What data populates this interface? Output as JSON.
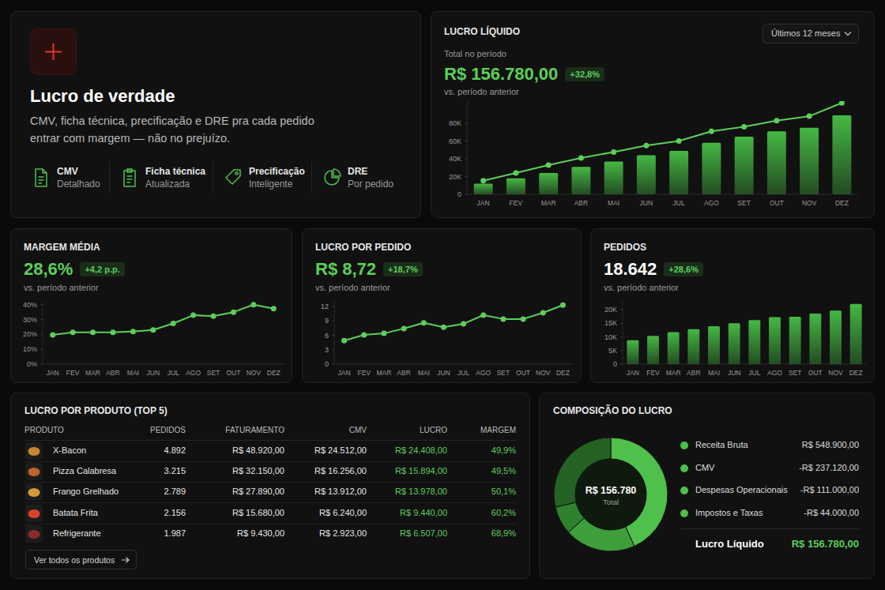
{
  "hero": {
    "title": "Lucro de verdade",
    "description": "CMV, ficha técnica, precificação e DRE pra cada pedido entrar com margem — não no prejuízo.",
    "features": [
      {
        "label": "CMV",
        "sublabel": "Detalhado"
      },
      {
        "label": "Ficha técnica",
        "sublabel": "Atualizada"
      },
      {
        "label": "Precificação",
        "sublabel": "Inteligente"
      },
      {
        "label": "DRE",
        "sublabel": "Por pedido"
      }
    ]
  },
  "kpis": [
    {
      "selector": "Últimos 12 meses",
      "caption": "Total no período",
      "value": "R$ 156.780,00",
      "change": "+32,8%",
      "comparison": "vs. período anterior"
    },
    {
      "value": "28,6%",
      "change": "+4,2 p.p.",
      "comparison": "vs. período anterior"
    },
    {
      "value": "R$ 8,72",
      "change": "+18,7%",
      "comparison": "vs. período anterior"
    },
    {
      "value": "18.642",
      "change": "+28,6%",
      "comparison": "vs. período anterior"
    }
  ],
  "chart_data": [
    {
      "type": "bar",
      "title": "LUCRO LÍQUIDO",
      "categories": [
        "JAN",
        "FEV",
        "MAR",
        "ABR",
        "MAI",
        "JUN",
        "JUL",
        "AGO",
        "SET",
        "OUT",
        "NOV",
        "DEZ"
      ],
      "series": [
        {
          "type": "bar",
          "color": "#45b843",
          "values": [
            12000,
            18000,
            24000,
            31000,
            37000,
            44000,
            49000,
            58000,
            65000,
            71000,
            75000,
            89000
          ]
        },
        {
          "type": "line",
          "color": "#5ccf5a",
          "marker": "circle",
          "values": [
            15300,
            24000,
            33000,
            41000,
            47600,
            55000,
            60000,
            71000,
            76000,
            83000,
            88000,
            103000
          ]
        }
      ],
      "ylim": [
        0,
        105000
      ],
      "yticks": [
        0,
        {
          "value": 20000,
          "label": "20K"
        },
        {
          "value": 40000,
          "label": "40K"
        },
        {
          "value": 60000,
          "label": "60K"
        },
        {
          "value": 80000,
          "label": "80K"
        }
      ],
      "grid": false
    },
    {
      "type": "line",
      "title": "MARGEM MÉDIA",
      "categories": [
        "JAN",
        "FEV",
        "MAR",
        "ABR",
        "MAI",
        "JUN",
        "JUL",
        "AGO",
        "SET",
        "OUT",
        "NOV",
        "DEZ"
      ],
      "values": [
        19.7,
        21.4,
        21.4,
        21.4,
        21.9,
        23,
        27.4,
        32.9,
        32.3,
        35,
        40,
        37.3
      ],
      "color": "#5ccf5a",
      "marker": "circle",
      "ylim": [
        0,
        42
      ],
      "yticks": [
        {
          "value": 0,
          "label": "0%"
        },
        {
          "value": 10,
          "label": "10%"
        },
        {
          "value": 20,
          "label": "20%"
        },
        {
          "value": 30,
          "label": "30%"
        },
        {
          "value": 40,
          "label": "40%"
        }
      ],
      "grid": false
    },
    {
      "type": "line",
      "title": "LUCRO POR PEDIDO",
      "categories": [
        "JAN",
        "FEV",
        "MAR",
        "ABR",
        "MAI",
        "JUN",
        "JUL",
        "AGO",
        "SET",
        "OUT",
        "NOV",
        "DEZ"
      ],
      "values": [
        4.9,
        6.1,
        6.4,
        7.4,
        8.6,
        7.7,
        8.4,
        10.2,
        9.4,
        9.4,
        10.7,
        12.3
      ],
      "color": "#5ccf5a",
      "marker": "circle",
      "ylim": [
        0,
        13
      ],
      "yticks": [
        0,
        3,
        6,
        9,
        12
      ],
      "grid": false
    },
    {
      "type": "bar",
      "title": "PEDIDOS",
      "categories": [
        "JAN",
        "FEV",
        "MAR",
        "ABR",
        "MAI",
        "JUN",
        "JUL",
        "AGO",
        "SET",
        "OUT",
        "NOV",
        "DEZ"
      ],
      "values": [
        8800,
        10400,
        11800,
        12900,
        14000,
        15100,
        16200,
        17300,
        17500,
        18600,
        19700,
        22200
      ],
      "color": "#45b843",
      "ylim": [
        0,
        23000
      ],
      "yticks": [
        0,
        {
          "value": 5000,
          "label": "5K"
        },
        {
          "value": 10000,
          "label": "10K"
        },
        {
          "value": 15000,
          "label": "15K"
        },
        {
          "value": 20000,
          "label": "20K"
        }
      ],
      "grid": false
    },
    {
      "type": "pie",
      "title": "COMPOSIÇÃO DO LUCRO",
      "center_label": "R$ 156.780",
      "center_sublabel": "Total",
      "values": [
        237120,
        111000,
        44000,
        156780
      ],
      "colors": [
        "#4fc04c",
        "#3d9e3b",
        "#2f812d",
        "#246323"
      ]
    }
  ],
  "table": {
    "title": "LUCRO POR PRODUTO (TOP 5)",
    "columns": [
      "PRODUTO",
      "PEDIDOS",
      "FATURAMENTO",
      "CMV",
      "LUCRO",
      "MARGEM"
    ],
    "rows": [
      [
        "X-Bacon",
        "4.892",
        "R$ 48.920,00",
        "R$ 24.512,00",
        "R$ 24.408,00",
        "49,9%"
      ],
      [
        "Pizza Calabresa",
        "3.215",
        "R$ 32.150,00",
        "R$ 16.256,00",
        "R$ 15.894,00",
        "49,5%"
      ],
      [
        "Frango Grelhado",
        "2.789",
        "R$ 27.890,00",
        "R$ 13.912,00",
        "R$ 13.978,00",
        "50,1%"
      ],
      [
        "Batata Frita",
        "2.156",
        "R$ 15.680,00",
        "R$ 6.240,00",
        "R$ 9.440,00",
        "60,2%"
      ],
      [
        "Refrigerante",
        "1.987",
        "R$ 9.430,00",
        "R$ 2.923,00",
        "R$ 6.507,00",
        "68,9%"
      ]
    ],
    "button": "Ver todos os produtos"
  },
  "composition": {
    "rows": [
      {
        "label": "Receita Bruta",
        "value": "R$ 548.900,00"
      },
      {
        "label": "CMV",
        "value": "-R$ 237.120,00"
      },
      {
        "label": "Despesas Operacionais",
        "value": "-R$ 111.000,00"
      },
      {
        "label": "Impostos e Taxas",
        "value": "-R$ 44.000,00"
      }
    ],
    "total": {
      "label": "Lucro Líquido",
      "value": "R$ 156.780,00"
    }
  }
}
